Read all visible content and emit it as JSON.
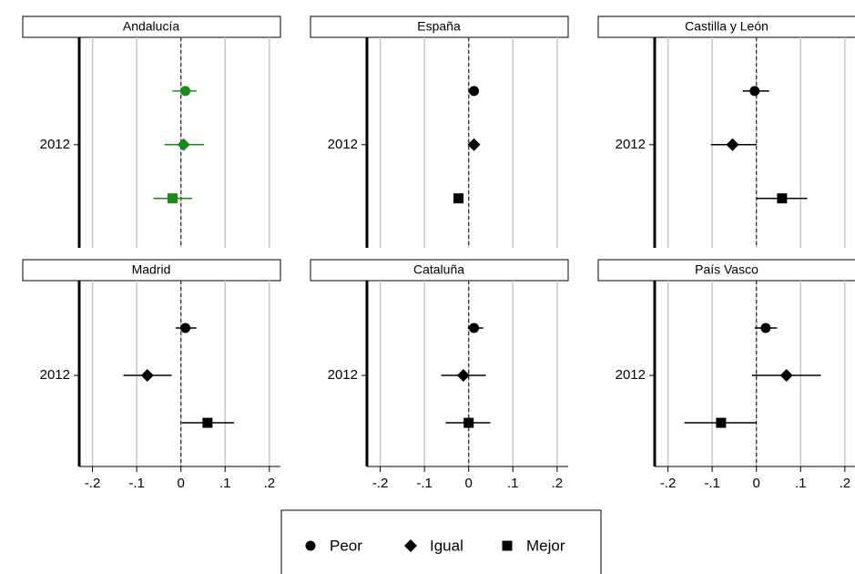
{
  "chart_data": {
    "type": "coefplot",
    "categories": [
      "2012"
    ],
    "xlim": [
      -0.23,
      0.225
    ],
    "xticks": [
      {
        "value": -0.2,
        "label": "-.2"
      },
      {
        "value": -0.1,
        "label": "-.1"
      },
      0,
      {
        "value": 0.1,
        "label": ".1"
      },
      {
        "value": 0.2,
        "label": ".2"
      }
    ],
    "xline": 0,
    "grid": true,
    "legend": [
      {
        "name": "Peor",
        "marker": "circle"
      },
      {
        "name": "Igual",
        "marker": "diamond"
      },
      {
        "name": "Mejor",
        "marker": "square"
      }
    ],
    "panels": [
      {
        "title": "Andalucía",
        "series": [
          {
            "color": "#1a8a1a",
            "values": [
              0.01
            ],
            "lower": [
              -0.019
            ],
            "upper": [
              0.035
            ]
          },
          {
            "color": "#1a8a1a",
            "values": [
              0.006
            ],
            "lower": [
              -0.037
            ],
            "upper": [
              0.052
            ]
          },
          {
            "color": "#1a8a1a",
            "values": [
              -0.019
            ],
            "lower": [
              -0.062
            ],
            "upper": [
              0.025
            ]
          }
        ]
      },
      {
        "title": "España",
        "series": [
          {
            "color": "#000000",
            "values": [
              0.012
            ],
            "lower": [
              0.007
            ],
            "upper": [
              0.017
            ]
          },
          {
            "color": "#000000",
            "values": [
              0.012
            ],
            "lower": [
              0.007
            ],
            "upper": [
              0.017
            ]
          },
          {
            "color": "#000000",
            "values": [
              -0.023
            ],
            "lower": [
              -0.033
            ],
            "upper": [
              -0.012
            ]
          }
        ]
      },
      {
        "title": "Castilla y León",
        "series": [
          {
            "color": "#000000",
            "values": [
              -0.004
            ],
            "lower": [
              -0.031
            ],
            "upper": [
              0.029
            ]
          },
          {
            "color": "#000000",
            "values": [
              -0.054
            ],
            "lower": [
              -0.103
            ],
            "upper": [
              0.0
            ]
          },
          {
            "color": "#000000",
            "values": [
              0.058
            ],
            "lower": [
              0.0
            ],
            "upper": [
              0.115
            ]
          }
        ]
      },
      {
        "title": "Madrid",
        "series": [
          {
            "color": "#000000",
            "values": [
              0.01
            ],
            "lower": [
              -0.012
            ],
            "upper": [
              0.035
            ]
          },
          {
            "color": "#000000",
            "values": [
              -0.076
            ],
            "lower": [
              -0.13
            ],
            "upper": [
              -0.021
            ]
          },
          {
            "color": "#000000",
            "values": [
              0.06
            ],
            "lower": [
              0.002
            ],
            "upper": [
              0.12
            ]
          }
        ]
      },
      {
        "title": "Cataluña",
        "series": [
          {
            "color": "#000000",
            "values": [
              0.012
            ],
            "lower": [
              -0.002
            ],
            "upper": [
              0.033
            ]
          },
          {
            "color": "#000000",
            "values": [
              -0.012
            ],
            "lower": [
              -0.062
            ],
            "upper": [
              0.039
            ]
          },
          {
            "color": "#000000",
            "values": [
              0.0
            ],
            "lower": [
              -0.052
            ],
            "upper": [
              0.049
            ]
          }
        ]
      },
      {
        "title": "País Vasco",
        "series": [
          {
            "color": "#000000",
            "values": [
              0.021
            ],
            "lower": [
              -0.004
            ],
            "upper": [
              0.047
            ]
          },
          {
            "color": "#000000",
            "values": [
              0.068
            ],
            "lower": [
              -0.01
            ],
            "upper": [
              0.146
            ]
          },
          {
            "color": "#000000",
            "values": [
              -0.08
            ],
            "lower": [
              -0.163
            ],
            "upper": [
              0.0
            ]
          }
        ]
      }
    ]
  }
}
